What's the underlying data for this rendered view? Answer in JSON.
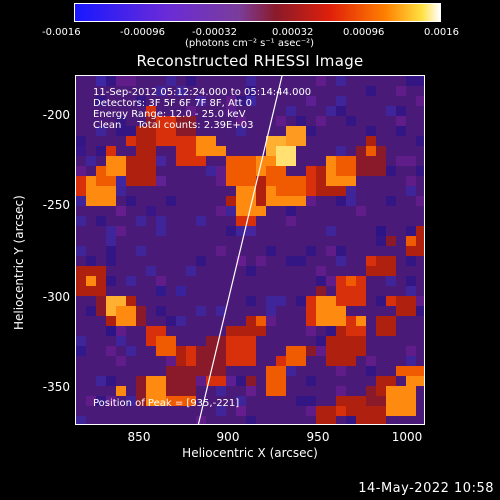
{
  "colorbar": {
    "ticks": [
      "-0.0016",
      "-0.00096",
      "-0.00032",
      "0.00032",
      "0.00096",
      "0.0016"
    ],
    "unit_label": "(photons cm⁻² s⁻¹ asec⁻²)"
  },
  "title": "Reconstructed RHESSI Image",
  "annotations": {
    "line1": "11-Sep-2012 05:12:24.000 to 05:14:44.000",
    "line2": "Detectors: 3F 5F 6F 7F 8F, Att 0",
    "line3": "Energy Range: 12.0 - 25.0 keV",
    "line4": "Clean     Total counts: 2.39E+03",
    "peak": "Position of Peak = [935,-221]"
  },
  "axes": {
    "xlabel": "Heliocentric X (arcsec)",
    "ylabel": "Heliocentric Y (arcsec)",
    "xticks": [
      "850",
      "900",
      "950",
      "1000"
    ],
    "yticks": [
      "-200",
      "-250",
      "-300",
      "-350"
    ]
  },
  "footer_date": "14-May-2022 10:58",
  "colors": {
    "background": "#000000",
    "map_low": "#3a1070",
    "map_mid": "#8a1a2a",
    "map_high": "#ff8000",
    "map_peak": "#ffffe0",
    "limb_line": "#ffffff"
  }
}
